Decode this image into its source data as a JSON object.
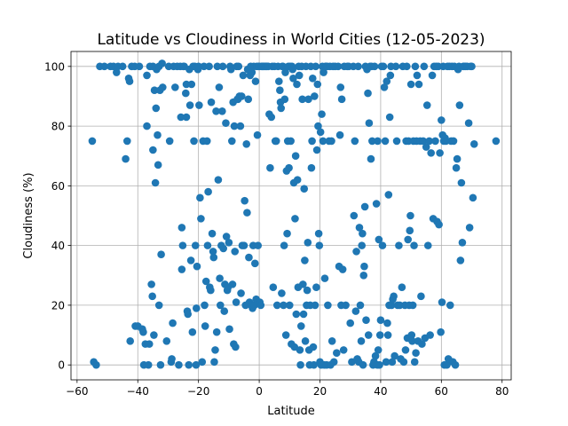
{
  "chart_data": {
    "type": "scatter",
    "title": "Latitude vs Cloudiness in World Cities (12-05-2023)",
    "xlabel": "Latitude",
    "ylabel": "Cloudiness (%)",
    "xlim": [
      -62,
      83
    ],
    "ylim": [
      -5,
      105
    ],
    "xticks": [
      -60,
      -40,
      -20,
      0,
      20,
      40,
      60,
      80
    ],
    "yticks": [
      0,
      20,
      40,
      60,
      80,
      100
    ],
    "grid": true,
    "marker_color": "#1f77b4",
    "points": [
      [
        -55,
        75
      ],
      [
        -54.5,
        1
      ],
      [
        -53.7,
        0
      ],
      [
        -52.5,
        100
      ],
      [
        -51,
        100
      ],
      [
        -49,
        100
      ],
      [
        -48,
        100
      ],
      [
        -47,
        98
      ],
      [
        -46.5,
        100
      ],
      [
        -45,
        100
      ],
      [
        -44,
        69
      ],
      [
        -43.5,
        75
      ],
      [
        -43,
        96
      ],
      [
        -42.7,
        95
      ],
      [
        -42.5,
        8
      ],
      [
        -42,
        100
      ],
      [
        -41,
        100
      ],
      [
        -40.8,
        13
      ],
      [
        -40,
        13
      ],
      [
        -39.5,
        100
      ],
      [
        -38.5,
        12
      ],
      [
        -38.2,
        11
      ],
      [
        -38,
        0
      ],
      [
        -37.5,
        7
      ],
      [
        -37,
        97
      ],
      [
        -37,
        80
      ],
      [
        -36.5,
        0
      ],
      [
        -36.2,
        7
      ],
      [
        -36,
        100
      ],
      [
        -35.5,
        27
      ],
      [
        -35.2,
        23
      ],
      [
        -35,
        72
      ],
      [
        -35,
        100
      ],
      [
        -34.7,
        10
      ],
      [
        -34.5,
        92
      ],
      [
        -34.2,
        61
      ],
      [
        -34,
        86
      ],
      [
        -33.8,
        99
      ],
      [
        -33.5,
        77
      ],
      [
        -33.3,
        67
      ],
      [
        -33,
        20
      ],
      [
        -33,
        100
      ],
      [
        -32.7,
        92
      ],
      [
        -32.5,
        0
      ],
      [
        -32.3,
        37
      ],
      [
        -32,
        101
      ],
      [
        -31.8,
        93
      ],
      [
        -30.5,
        8
      ],
      [
        -29.8,
        100
      ],
      [
        -29.5,
        75
      ],
      [
        -29,
        1
      ],
      [
        -28.8,
        2
      ],
      [
        -28.5,
        14
      ],
      [
        -28.2,
        100
      ],
      [
        -27.7,
        93
      ],
      [
        -27,
        100
      ],
      [
        -26.5,
        0
      ],
      [
        -26,
        100
      ],
      [
        -25.8,
        83
      ],
      [
        -25.5,
        46
      ],
      [
        -25.5,
        32
      ],
      [
        -25.2,
        40
      ],
      [
        -25,
        100
      ],
      [
        -24.7,
        100
      ],
      [
        -24.2,
        91
      ],
      [
        -24,
        94
      ],
      [
        -24,
        83
      ],
      [
        -23.7,
        18
      ],
      [
        -23.5,
        17
      ],
      [
        -23.2,
        0
      ],
      [
        -23,
        99
      ],
      [
        -22.8,
        87
      ],
      [
        -22.5,
        35
      ],
      [
        -22.3,
        94
      ],
      [
        -22,
        11
      ],
      [
        -21.8,
        100
      ],
      [
        -21.5,
        75
      ],
      [
        -21.2,
        100
      ],
      [
        -21,
        40
      ],
      [
        -20.8,
        0
      ],
      [
        -20.7,
        19
      ],
      [
        -20.5,
        33
      ],
      [
        -20.2,
        99
      ],
      [
        -20,
        100
      ],
      [
        -19.8,
        87
      ],
      [
        -19.5,
        56
      ],
      [
        -19.2,
        49
      ],
      [
        -18.8,
        1
      ],
      [
        -18.5,
        75
      ],
      [
        -18.2,
        100
      ],
      [
        -18,
        20
      ],
      [
        -17.8,
        13
      ],
      [
        -17.5,
        28
      ],
      [
        -17.2,
        75
      ],
      [
        -17,
        40
      ],
      [
        -16.8,
        58
      ],
      [
        -16.5,
        100
      ],
      [
        -16.3,
        26
      ],
      [
        -16,
        25
      ],
      [
        -15.8,
        88
      ],
      [
        -15.5,
        44
      ],
      [
        -15.2,
        38
      ],
      [
        -15,
        36
      ],
      [
        -14.8,
        1
      ],
      [
        -14.5,
        5
      ],
      [
        -14.2,
        85
      ],
      [
        -14,
        11
      ],
      [
        -13.8,
        100
      ],
      [
        -13.5,
        62
      ],
      [
        -13.2,
        93
      ],
      [
        -13,
        29
      ],
      [
        -12.8,
        20
      ],
      [
        -12.5,
        40
      ],
      [
        -12.2,
        85
      ],
      [
        -12,
        100
      ],
      [
        -11.8,
        39
      ],
      [
        -11.5,
        18
      ],
      [
        -11.3,
        27
      ],
      [
        -11,
        81
      ],
      [
        -10.8,
        43
      ],
      [
        -10.5,
        25
      ],
      [
        -10.3,
        26
      ],
      [
        -10,
        41
      ],
      [
        -9.8,
        12
      ],
      [
        -9.6,
        100
      ],
      [
        -9.3,
        99
      ],
      [
        -9,
        75
      ],
      [
        -8.8,
        27
      ],
      [
        -8.6,
        88
      ],
      [
        -8.4,
        7
      ],
      [
        -8.2,
        80
      ],
      [
        -8,
        38
      ],
      [
        -7.8,
        6
      ],
      [
        -7.6,
        21
      ],
      [
        -7.4,
        100
      ],
      [
        -7.2,
        89
      ],
      [
        -7,
        89
      ],
      [
        -6.8,
        100
      ],
      [
        -6.5,
        90
      ],
      [
        -6.2,
        80
      ],
      [
        -6,
        24
      ],
      [
        -5.8,
        90
      ],
      [
        -5.6,
        40
      ],
      [
        -5.3,
        97
      ],
      [
        -5,
        40
      ],
      [
        -4.8,
        55
      ],
      [
        -4.5,
        20
      ],
      [
        -4.2,
        74
      ],
      [
        -4,
        51
      ],
      [
        -3.8,
        99
      ],
      [
        -3.6,
        89
      ],
      [
        -3.4,
        36
      ],
      [
        -3.2,
        21
      ],
      [
        -3,
        97
      ],
      [
        -2.8,
        100
      ],
      [
        -2.6,
        20
      ],
      [
        -2.4,
        98
      ],
      [
        -2.2,
        19
      ],
      [
        -2,
        40
      ],
      [
        -1.8,
        100
      ],
      [
        -1.6,
        20
      ],
      [
        -1.4,
        34
      ],
      [
        -1.2,
        95
      ],
      [
        -1,
        22
      ],
      [
        -0.8,
        100
      ],
      [
        -0.6,
        77
      ],
      [
        -0.4,
        40
      ],
      [
        -0.2,
        100
      ],
      [
        0,
        100
      ],
      [
        0.2,
        21
      ],
      [
        0.5,
        20
      ],
      [
        0.8,
        100
      ],
      [
        1,
        100
      ],
      [
        1.3,
        100
      ],
      [
        1.6,
        100
      ],
      [
        2,
        100
      ],
      [
        2.3,
        100
      ],
      [
        2.6,
        100
      ],
      [
        3,
        100
      ],
      [
        3.3,
        84
      ],
      [
        3.6,
        66
      ],
      [
        4,
        83
      ],
      [
        4.3,
        100
      ],
      [
        4.6,
        26
      ],
      [
        5,
        100
      ],
      [
        5.3,
        75
      ],
      [
        5.6,
        75
      ],
      [
        5.9,
        20
      ],
      [
        6.2,
        100
      ],
      [
        6.5,
        95
      ],
      [
        6.8,
        92
      ],
      [
        7,
        88
      ],
      [
        7.2,
        86
      ],
      [
        7.4,
        24
      ],
      [
        7.6,
        100
      ],
      [
        7.8,
        100
      ],
      [
        8,
        20
      ],
      [
        8.2,
        40
      ],
      [
        8.4,
        89
      ],
      [
        8.6,
        98
      ],
      [
        8.8,
        10
      ],
      [
        9,
        65
      ],
      [
        9.2,
        44
      ],
      [
        9.4,
        75
      ],
      [
        9.6,
        100
      ],
      [
        9.8,
        66
      ],
      [
        10,
        20
      ],
      [
        10.2,
        100
      ],
      [
        10.4,
        75
      ],
      [
        10.6,
        7
      ],
      [
        10.8,
        100
      ],
      [
        11,
        99
      ],
      [
        11.2,
        96
      ],
      [
        11.4,
        61
      ],
      [
        11.6,
        6
      ],
      [
        11.8,
        49
      ],
      [
        12,
        70
      ],
      [
        12.2,
        17
      ],
      [
        12.4,
        94
      ],
      [
        12.6,
        62
      ],
      [
        12.8,
        26
      ],
      [
        13,
        100
      ],
      [
        13.2,
        97
      ],
      [
        13.4,
        5
      ],
      [
        13.6,
        0
      ],
      [
        13.8,
        13
      ],
      [
        14,
        100
      ],
      [
        14.2,
        89
      ],
      [
        14.4,
        27
      ],
      [
        14.6,
        17
      ],
      [
        14.8,
        59
      ],
      [
        15,
        35
      ],
      [
        15.2,
        8
      ],
      [
        15.4,
        100
      ],
      [
        15.6,
        20
      ],
      [
        15.8,
        25
      ],
      [
        16,
        41
      ],
      [
        16.2,
        89
      ],
      [
        16.4,
        5
      ],
      [
        16.6,
        0
      ],
      [
        16.8,
        20
      ],
      [
        17,
        100
      ],
      [
        17.2,
        66
      ],
      [
        17.4,
        75
      ],
      [
        17.6,
        96
      ],
      [
        17.8,
        6
      ],
      [
        18,
        0
      ],
      [
        18.2,
        90
      ],
      [
        18.4,
        20
      ],
      [
        18.6,
        100
      ],
      [
        18.8,
        26
      ],
      [
        19,
        72
      ],
      [
        19.2,
        94
      ],
      [
        19.4,
        80
      ],
      [
        19.6,
        44
      ],
      [
        19.8,
        40
      ],
      [
        20,
        1
      ],
      [
        20.2,
        78
      ],
      [
        20.4,
        0
      ],
      [
        20.6,
        84
      ],
      [
        20.8,
        100
      ],
      [
        21,
        75
      ],
      [
        21.2,
        98
      ],
      [
        21.4,
        0
      ],
      [
        21.6,
        29
      ],
      [
        21.8,
        100
      ],
      [
        22,
        100
      ],
      [
        22.2,
        0
      ],
      [
        22.4,
        100
      ],
      [
        22.6,
        20
      ],
      [
        23,
        75
      ],
      [
        23.3,
        100
      ],
      [
        23.5,
        0
      ],
      [
        23.8,
        75
      ],
      [
        24,
        8
      ],
      [
        24.3,
        100
      ],
      [
        24.6,
        1
      ],
      [
        25,
        100
      ],
      [
        25.5,
        4
      ],
      [
        26,
        100
      ],
      [
        26.3,
        33
      ],
      [
        26.6,
        77
      ],
      [
        26.8,
        93
      ],
      [
        27,
        20
      ],
      [
        27.2,
        89
      ],
      [
        27.5,
        32
      ],
      [
        27.8,
        5
      ],
      [
        28,
        100
      ],
      [
        28.5,
        20
      ],
      [
        29,
        100
      ],
      [
        29.5,
        100
      ],
      [
        30,
        14
      ],
      [
        30.5,
        1
      ],
      [
        31,
        100
      ],
      [
        31.2,
        50
      ],
      [
        31.5,
        75
      ],
      [
        31.8,
        18
      ],
      [
        32,
        38
      ],
      [
        32.3,
        2
      ],
      [
        32.6,
        100
      ],
      [
        32.8,
        1
      ],
      [
        33,
        46
      ],
      [
        33.3,
        20
      ],
      [
        33.6,
        8
      ],
      [
        33.8,
        40
      ],
      [
        34,
        44
      ],
      [
        34.2,
        0
      ],
      [
        34.4,
        30
      ],
      [
        34.6,
        33
      ],
      [
        34.8,
        53
      ],
      [
        35,
        100
      ],
      [
        35.2,
        15
      ],
      [
        35.5,
        99
      ],
      [
        35.8,
        91
      ],
      [
        36,
        10
      ],
      [
        36.2,
        81
      ],
      [
        36.5,
        100
      ],
      [
        36.8,
        69
      ],
      [
        37,
        100
      ],
      [
        37.2,
        75
      ],
      [
        37.5,
        0
      ],
      [
        37.8,
        1
      ],
      [
        38,
        100
      ],
      [
        38.3,
        3
      ],
      [
        38.6,
        54
      ],
      [
        38.9,
        0
      ],
      [
        39,
        75
      ],
      [
        39.2,
        5
      ],
      [
        39.4,
        42
      ],
      [
        39.6,
        0
      ],
      [
        39.8,
        10
      ],
      [
        40,
        15
      ],
      [
        40.3,
        100
      ],
      [
        40.6,
        40
      ],
      [
        40.9,
        100
      ],
      [
        41.2,
        93
      ],
      [
        41.5,
        75
      ],
      [
        41.8,
        1
      ],
      [
        42,
        95
      ],
      [
        42.2,
        14
      ],
      [
        42.4,
        10
      ],
      [
        42.6,
        57
      ],
      [
        42.8,
        20
      ],
      [
        43,
        83
      ],
      [
        43.2,
        97
      ],
      [
        43.4,
        100
      ],
      [
        43.6,
        20
      ],
      [
        43.8,
        1
      ],
      [
        44,
        22
      ],
      [
        44.3,
        23
      ],
      [
        44.6,
        3
      ],
      [
        45,
        100
      ],
      [
        45.3,
        75
      ],
      [
        45.6,
        20
      ],
      [
        46,
        40
      ],
      [
        46.3,
        20
      ],
      [
        46.6,
        2
      ],
      [
        47,
        26
      ],
      [
        47.3,
        100
      ],
      [
        47.6,
        1
      ],
      [
        48,
        20
      ],
      [
        48.2,
        5
      ],
      [
        48.4,
        75
      ],
      [
        48.6,
        100
      ],
      [
        48.8,
        9
      ],
      [
        49,
        42
      ],
      [
        49.2,
        75
      ],
      [
        49.4,
        20
      ],
      [
        49.6,
        45
      ],
      [
        49.8,
        50
      ],
      [
        50,
        94
      ],
      [
        50.2,
        10
      ],
      [
        50.4,
        8
      ],
      [
        50.6,
        20
      ],
      [
        50.8,
        75
      ],
      [
        51,
        40
      ],
      [
        51.2,
        1
      ],
      [
        51.4,
        100
      ],
      [
        51.6,
        4
      ],
      [
        51.8,
        75
      ],
      [
        52,
        97
      ],
      [
        52.3,
        8
      ],
      [
        52.6,
        94
      ],
      [
        53,
        75
      ],
      [
        53.3,
        23
      ],
      [
        53.6,
        7
      ],
      [
        54,
        75
      ],
      [
        54.3,
        100
      ],
      [
        54.6,
        9
      ],
      [
        55,
        73
      ],
      [
        55.3,
        87
      ],
      [
        55.6,
        40
      ],
      [
        56,
        75
      ],
      [
        56.3,
        10
      ],
      [
        56.6,
        71
      ],
      [
        57,
        97
      ],
      [
        57.3,
        49
      ],
      [
        57.6,
        100
      ],
      [
        58,
        75
      ],
      [
        58.3,
        100
      ],
      [
        58.6,
        48
      ],
      [
        59,
        100
      ],
      [
        59.2,
        47
      ],
      [
        59.5,
        71
      ],
      [
        59.8,
        11
      ],
      [
        60,
        82
      ],
      [
        60.2,
        21
      ],
      [
        60.4,
        77
      ],
      [
        60.6,
        100
      ],
      [
        60.8,
        75
      ],
      [
        61,
        0
      ],
      [
        61.2,
        76
      ],
      [
        61.5,
        75
      ],
      [
        61.8,
        0
      ],
      [
        62,
        100
      ],
      [
        62.3,
        2
      ],
      [
        62.6,
        100
      ],
      [
        62.9,
        20
      ],
      [
        63.2,
        75
      ],
      [
        63.5,
        100
      ],
      [
        63.8,
        1
      ],
      [
        64,
        75
      ],
      [
        64.3,
        100
      ],
      [
        64.6,
        0
      ],
      [
        64.9,
        66
      ],
      [
        65.2,
        69
      ],
      [
        65.5,
        99
      ],
      [
        65.8,
        100
      ],
      [
        66,
        87
      ],
      [
        66.3,
        35
      ],
      [
        66.6,
        61
      ],
      [
        66.9,
        41
      ],
      [
        67.2,
        100
      ],
      [
        67.5,
        100
      ],
      [
        68,
        100
      ],
      [
        68.5,
        100
      ],
      [
        69,
        81
      ],
      [
        69.3,
        46
      ],
      [
        69.6,
        100
      ],
      [
        70,
        100
      ],
      [
        70.4,
        56
      ],
      [
        70.8,
        74
      ],
      [
        78,
        75
      ]
    ]
  }
}
